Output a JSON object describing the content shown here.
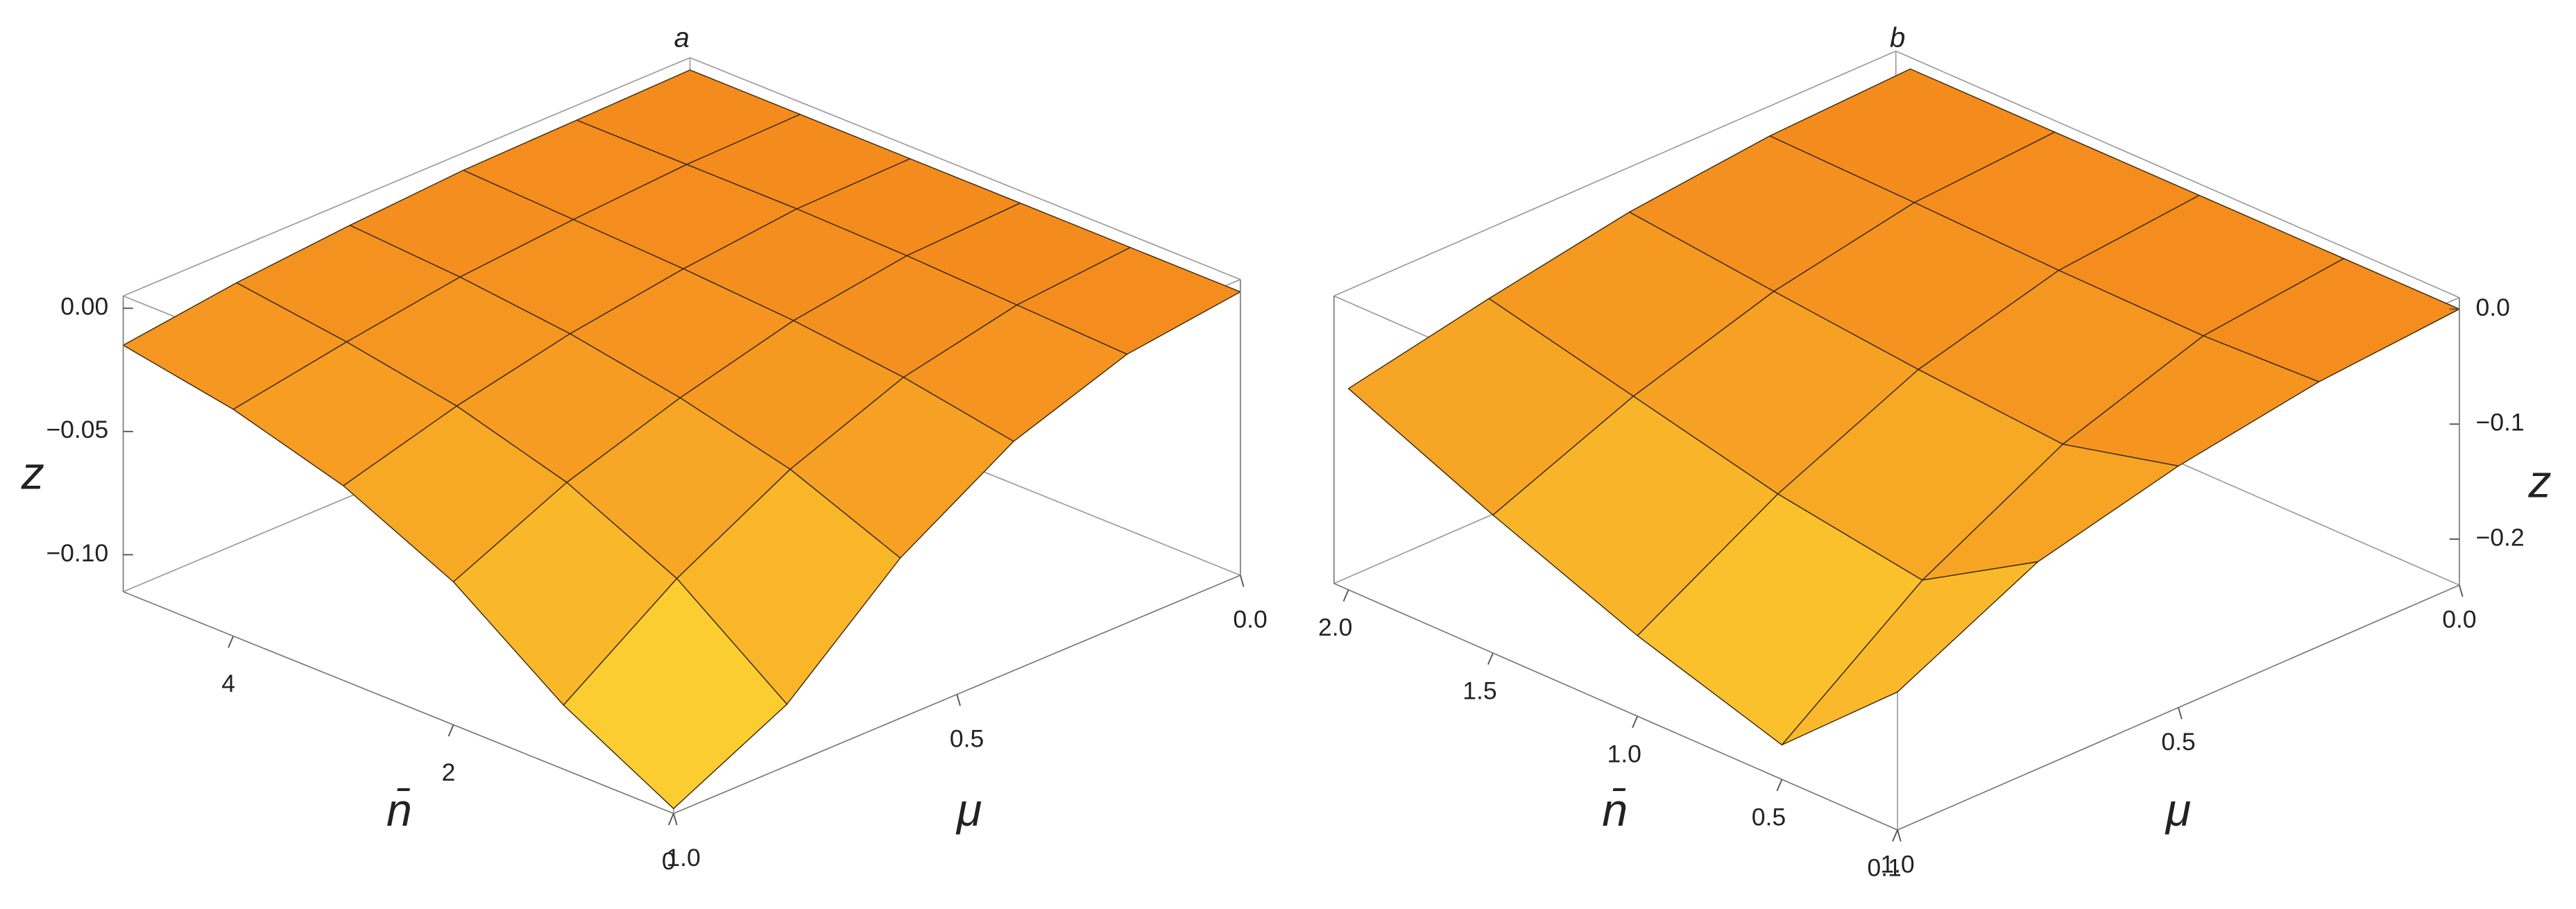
{
  "chart_data": [
    {
      "type": "surface",
      "title": "a",
      "xlabel": "n̄",
      "ylabel": "μ",
      "zlabel": "z",
      "x": [
        0,
        1,
        2,
        3,
        4,
        5
      ],
      "y": [
        0,
        0.2,
        0.4,
        0.6,
        0.8,
        1.0
      ],
      "z": [
        [
          0,
          -0.006,
          -0.022,
          -0.05,
          -0.09,
          -0.113
        ],
        [
          0,
          -0.004,
          -0.014,
          -0.032,
          -0.057,
          -0.089
        ],
        [
          0,
          -0.002,
          -0.009,
          -0.021,
          -0.036,
          -0.057
        ],
        [
          0,
          -0.001,
          -0.006,
          -0.013,
          -0.023,
          -0.036
        ],
        [
          0,
          -0.001,
          -0.004,
          -0.008,
          -0.015,
          -0.023
        ],
        [
          0,
          -0.001,
          -0.002,
          -0.005,
          -0.009,
          -0.015
        ]
      ],
      "xlim": [
        0,
        5
      ],
      "ylim": [
        1.0,
        0.0
      ],
      "zlim": [
        -0.115,
        0.005
      ],
      "xticks": [
        0,
        2,
        4
      ],
      "yticks": [
        {
          "value": 0,
          "label": "0.0"
        },
        0.5,
        {
          "value": 1,
          "label": "1.0"
        }
      ],
      "zticks": [
        {
          "value": 0,
          "label": "0.00"
        },
        {
          "value": -0.05,
          "label": "−0.05"
        },
        {
          "value": -0.1,
          "label": "−0.10"
        }
      ]
    },
    {
      "type": "surface",
      "title": "b",
      "xlabel": "n̄",
      "ylabel": "μ",
      "zlabel": "z",
      "x": [
        0.1,
        0.5,
        1.0,
        1.5,
        2.0
      ],
      "y": [
        0,
        0.25,
        0.5,
        0.75,
        1.0
      ],
      "z": [
        [
          0,
          -0.01,
          -0.03,
          -0.06,
          -0.12
        ],
        [
          0,
          -0.014,
          -0.055,
          -0.12,
          -0.21
        ],
        [
          0,
          -0.012,
          -0.045,
          -0.1,
          -0.17
        ],
        [
          0,
          -0.008,
          -0.032,
          -0.07,
          -0.12
        ],
        [
          0,
          -0.005,
          -0.018,
          -0.04,
          -0.065
        ]
      ],
      "xlim": [
        0.1,
        2.05
      ],
      "ylim": [
        1.0,
        0.0
      ],
      "zlim": [
        -0.24,
        0.01
      ],
      "xticks": [
        0.1,
        0.5,
        {
          "value": 1,
          "label": "1.0"
        },
        1.5,
        {
          "value": 2,
          "label": "2.0"
        }
      ],
      "yticks": [
        {
          "value": 0,
          "label": "0.0"
        },
        0.5,
        {
          "value": 1,
          "label": "1.0"
        }
      ],
      "zticks": [
        {
          "value": 0,
          "label": "0.0"
        },
        {
          "value": -0.1,
          "label": "−0.1"
        },
        {
          "value": -0.2,
          "label": "−0.2"
        }
      ]
    }
  ]
}
